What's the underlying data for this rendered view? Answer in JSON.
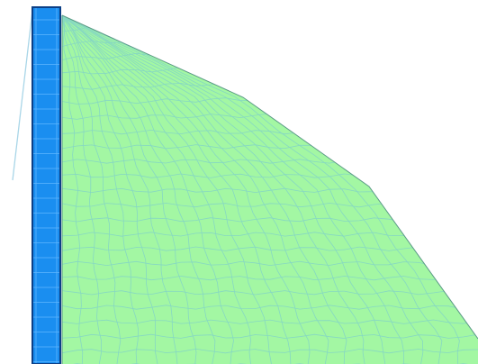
{
  "viewport": {
    "background": "#ffffff"
  },
  "mesh": {
    "element_type": "quadrilateral",
    "fill": "#a3f7a3",
    "grid_line_color": "#86d8c2",
    "boundary_color": "#5a9a86"
  },
  "column": {
    "fill": "#1a8ef0",
    "edge_color": "#0c3f86",
    "grid_line_color": "#5fb6ff"
  },
  "guide_line": {
    "color": "#a9d6e8"
  }
}
